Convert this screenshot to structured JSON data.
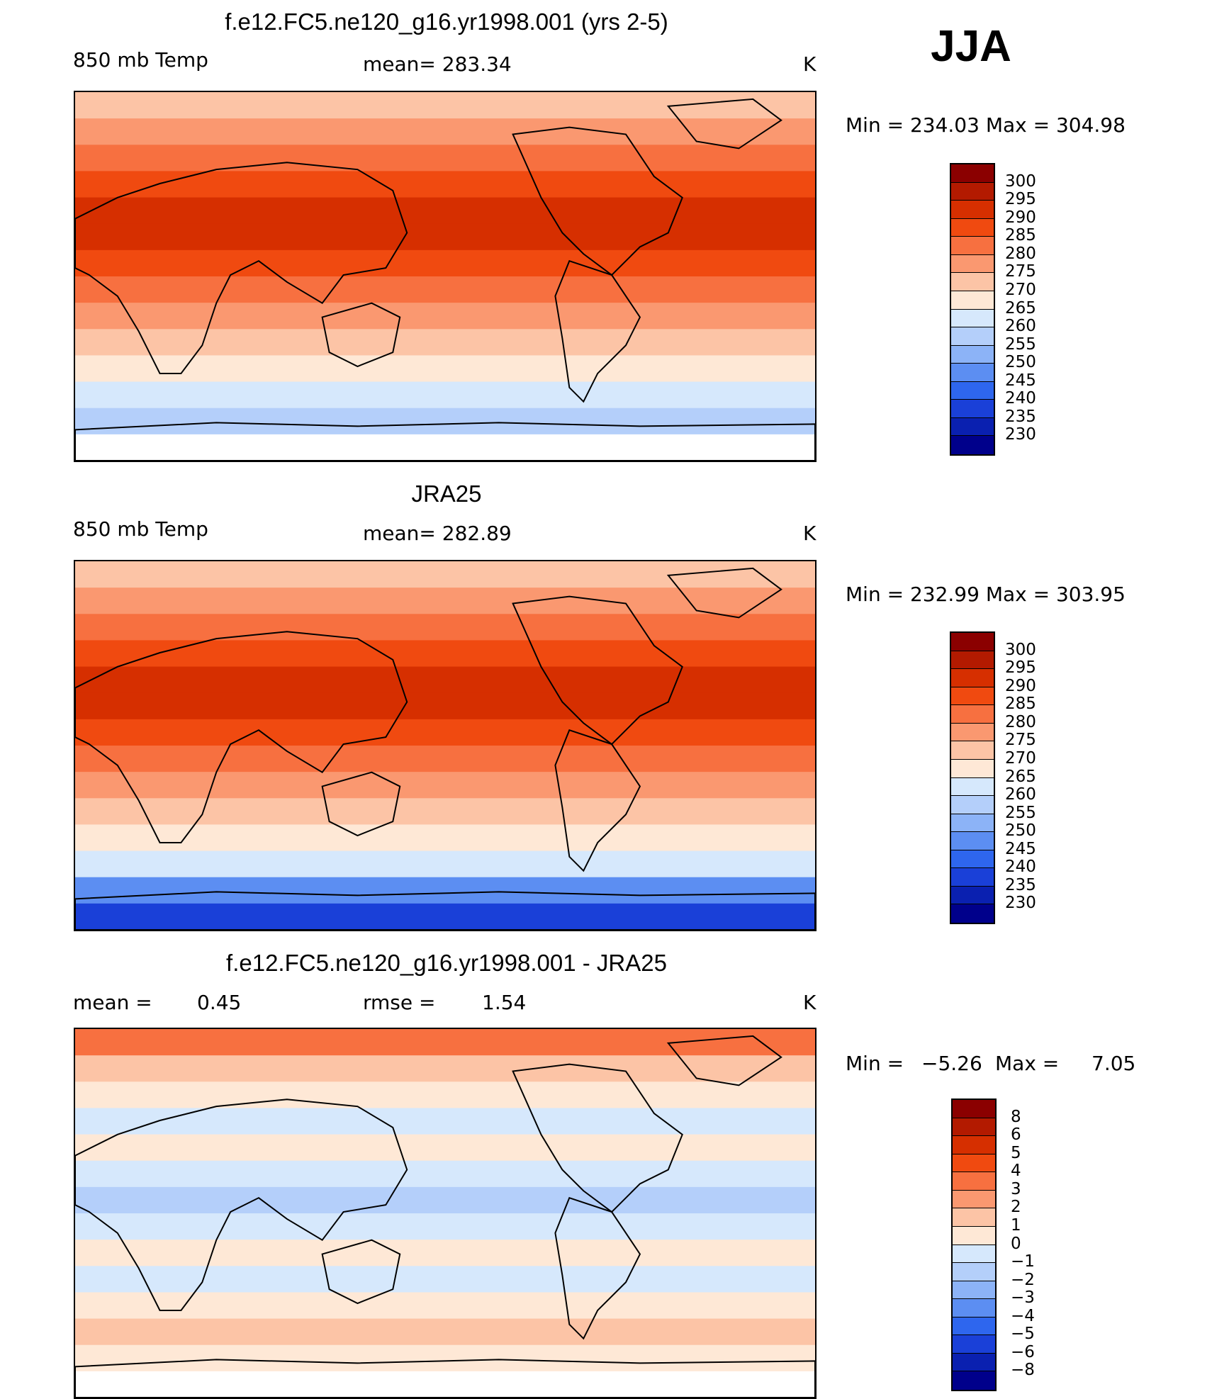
{
  "season": "JJA",
  "panels": [
    {
      "title": "f.e12.FC5.ne120_g16.yr1998.001 (yrs 2-5)",
      "left_label": "850 mb Temp",
      "center_label": "mean= 283.34",
      "units": "K",
      "minmax": "Min = 234.03 Max = 304.98",
      "colorbar_labels": [
        "300",
        "295",
        "290",
        "285",
        "280",
        "275",
        "270",
        "265",
        "260",
        "255",
        "250",
        "245",
        "240",
        "235",
        "230"
      ],
      "colorbar_colors": [
        "#8b0000",
        "#b31a00",
        "#d62f00",
        "#f04a10",
        "#f77040",
        "#fa9870",
        "#fcc4a6",
        "#fee8d6",
        "#d6e8fc",
        "#b4cffa",
        "#8cb3f7",
        "#5c8ef2",
        "#2e66ee",
        "#1a40d8",
        "#0a20b0",
        "#00008b"
      ],
      "bands": [
        "#fcc4a6",
        "#fa9870",
        "#f77040",
        "#f04a10",
        "#d62f00",
        "#d62f00",
        "#f04a10",
        "#f77040",
        "#fa9870",
        "#fcc4a6",
        "#fee8d6",
        "#d6e8fc",
        "#b4cffa",
        "#ffffff"
      ]
    },
    {
      "title": "JRA25",
      "left_label": "850 mb Temp",
      "center_label": "mean= 282.89",
      "units": "K",
      "minmax": "Min = 232.99 Max = 303.95",
      "colorbar_labels": [
        "300",
        "295",
        "290",
        "285",
        "280",
        "275",
        "270",
        "265",
        "260",
        "255",
        "250",
        "245",
        "240",
        "235",
        "230"
      ],
      "colorbar_colors": [
        "#8b0000",
        "#b31a00",
        "#d62f00",
        "#f04a10",
        "#f77040",
        "#fa9870",
        "#fcc4a6",
        "#fee8d6",
        "#d6e8fc",
        "#b4cffa",
        "#8cb3f7",
        "#5c8ef2",
        "#2e66ee",
        "#1a40d8",
        "#0a20b0",
        "#00008b"
      ],
      "bands": [
        "#fcc4a6",
        "#fa9870",
        "#f77040",
        "#f04a10",
        "#d62f00",
        "#d62f00",
        "#f04a10",
        "#f77040",
        "#fa9870",
        "#fcc4a6",
        "#fee8d6",
        "#d6e8fc",
        "#5c8ef2",
        "#1a40d8"
      ]
    },
    {
      "title": "f.e12.FC5.ne120_g16.yr1998.001 - JRA25",
      "left_label": "mean =",
      "left_value": "0.45",
      "center_label": "rmse =",
      "center_value": "1.54",
      "units": "K",
      "minmax_min_label": "Min =",
      "minmax_min": "−5.26",
      "minmax_max_label": "Max =",
      "minmax_max": "7.05",
      "colorbar_labels": [
        "8",
        "6",
        "5",
        "4",
        "3",
        "2",
        "1",
        "0",
        "−1",
        "−2",
        "−3",
        "−4",
        "−5",
        "−6",
        "−8"
      ],
      "colorbar_colors": [
        "#8b0000",
        "#b31a00",
        "#d62f00",
        "#f04a10",
        "#f77040",
        "#fa9870",
        "#fcc4a6",
        "#fee8d6",
        "#d6e8fc",
        "#b4cffa",
        "#8cb3f7",
        "#5c8ef2",
        "#2e66ee",
        "#1a40d8",
        "#0a20b0",
        "#00008b"
      ],
      "bands": [
        "#f77040",
        "#fcc4a6",
        "#fee8d6",
        "#d6e8fc",
        "#fee8d6",
        "#d6e8fc",
        "#b4cffa",
        "#d6e8fc",
        "#fee8d6",
        "#d6e8fc",
        "#fee8d6",
        "#fcc4a6",
        "#fee8d6",
        "#ffffff"
      ]
    }
  ]
}
